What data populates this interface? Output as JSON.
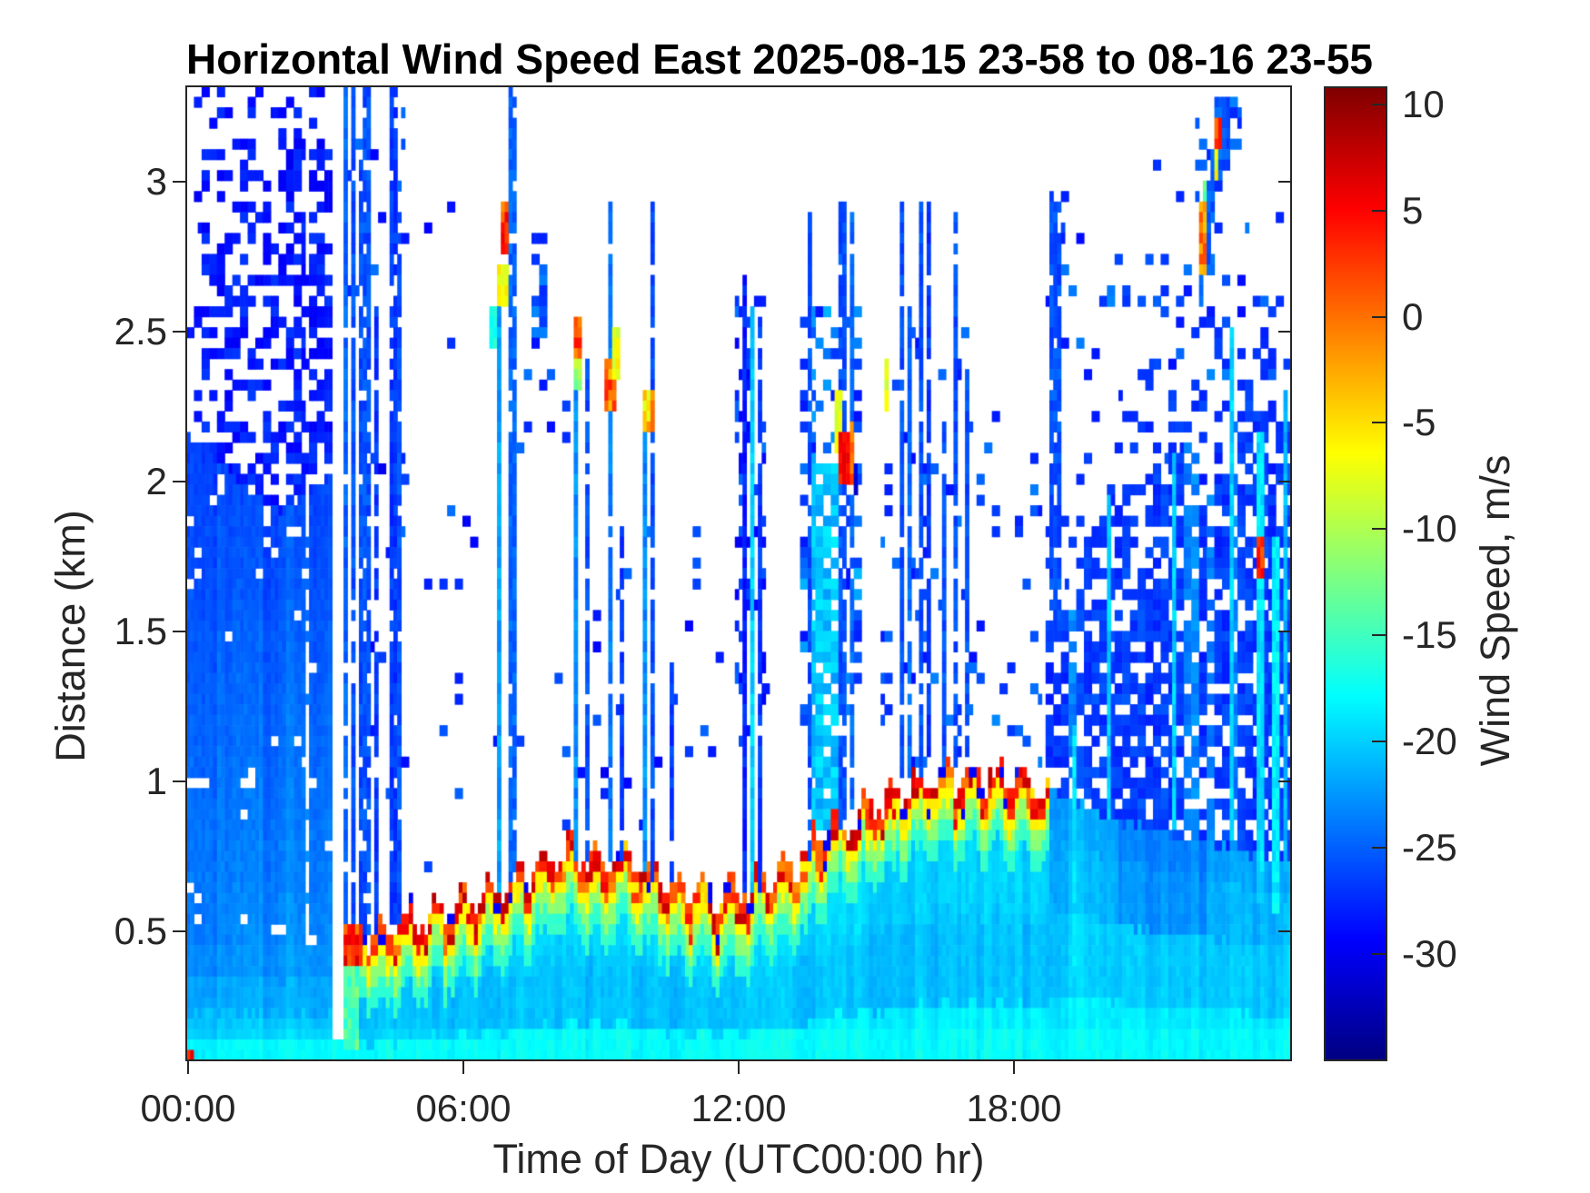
{
  "chart_data": {
    "type": "heatmap",
    "title": "Horizontal Wind Speed East 2025-08-15 23-58 to 08-16 23-55",
    "xlabel": "Time of Day (UTC00:00 hr)",
    "ylabel": "Distance (km)",
    "colorbar_label": "Wind Speed, m/s",
    "colormap": "jet",
    "x_unit": "hour UTC",
    "y_unit": "km",
    "x_range_hours": [
      0,
      24
    ],
    "y_range_km": [
      0.07,
      3.32
    ],
    "value_range": [
      -35,
      10.8
    ],
    "grid": false,
    "x_ticks": [
      {
        "hour": 0,
        "label": "00:00"
      },
      {
        "hour": 6,
        "label": "06:00"
      },
      {
        "hour": 12,
        "label": "12:00"
      },
      {
        "hour": 18,
        "label": "18:00"
      }
    ],
    "y_ticks": [
      {
        "km": 3,
        "label": "3"
      },
      {
        "km": 2.5,
        "label": "2.5"
      },
      {
        "km": 2,
        "label": "2"
      },
      {
        "km": 1.5,
        "label": "1.5"
      },
      {
        "km": 1,
        "label": "1"
      },
      {
        "km": 0.5,
        "label": "0.5"
      }
    ],
    "colorbar_ticks": [
      {
        "value": 10,
        "label": "10"
      },
      {
        "value": 5,
        "label": "5"
      },
      {
        "value": 0,
        "label": "0"
      },
      {
        "value": -5,
        "label": "-5"
      },
      {
        "value": -10,
        "label": "-10"
      },
      {
        "value": -15,
        "label": "-15"
      },
      {
        "value": -20,
        "label": "-20"
      },
      {
        "value": -25,
        "label": "-25"
      },
      {
        "value": -30,
        "label": "-30"
      }
    ],
    "mixed_layer_top_km": [
      [
        0,
        0.46
      ],
      [
        1,
        0.46
      ],
      [
        2,
        0.45
      ],
      [
        3,
        0.45
      ],
      [
        3.4,
        0.46
      ],
      [
        4,
        0.5
      ],
      [
        5,
        0.55
      ],
      [
        6,
        0.6
      ],
      [
        6.5,
        0.63
      ],
      [
        7,
        0.68
      ],
      [
        7.5,
        0.72
      ],
      [
        8,
        0.75
      ],
      [
        8.5,
        0.78
      ],
      [
        9,
        0.73
      ],
      [
        9.5,
        0.75
      ],
      [
        10,
        0.7
      ],
      [
        10.5,
        0.66
      ],
      [
        11,
        0.63
      ],
      [
        11.5,
        0.62
      ],
      [
        12,
        0.64
      ],
      [
        12.5,
        0.67
      ],
      [
        13,
        0.71
      ],
      [
        13.5,
        0.78
      ],
      [
        14,
        0.85
      ],
      [
        14.5,
        0.89
      ],
      [
        15,
        0.93
      ],
      [
        15.5,
        0.96
      ],
      [
        16,
        1.0
      ],
      [
        16.5,
        1.03
      ],
      [
        17,
        1.0
      ],
      [
        17.5,
        1.03
      ],
      [
        18,
        1.0
      ],
      [
        18.5,
        0.99
      ],
      [
        18.8,
        0.97
      ],
      [
        19.5,
        0.92
      ],
      [
        20,
        0.88
      ],
      [
        21,
        0.84
      ],
      [
        22,
        0.8
      ],
      [
        23,
        0.76
      ],
      [
        24,
        0.73
      ]
    ],
    "aerosol_band": {
      "start_hour": 3.42,
      "end_hour": 18.8,
      "typical_values": [
        0,
        9
      ]
    },
    "early_solid_top_km": [
      [
        0,
        2.15
      ],
      [
        0.5,
        2.1
      ],
      [
        1,
        2.02
      ],
      [
        1.5,
        1.95
      ],
      [
        2,
        1.9
      ],
      [
        2.5,
        1.95
      ],
      [
        3,
        2.0
      ],
      [
        3.35,
        2.05
      ]
    ],
    "evening_dense_top_km": [
      [
        18.65,
        1.5
      ],
      [
        19.5,
        1.8
      ],
      [
        20,
        1.9
      ],
      [
        21,
        2.05
      ],
      [
        22,
        2.15
      ],
      [
        23,
        2.35
      ],
      [
        24,
        2.2
      ]
    ],
    "white_gap_hours": [
      [
        3.17,
        3.4
      ]
    ],
    "speckle_regions": [
      {
        "t0": 3.35,
        "t1": 4.75,
        "h0": 0.6,
        "h1": 3.3,
        "p": 0.045,
        "v": -27,
        "vr": 3
      },
      {
        "t0": 4.75,
        "t1": 6.7,
        "h0": 0.7,
        "h1": 2.3,
        "p": 0.025,
        "v": -27,
        "vr": 3
      },
      {
        "t0": 4.75,
        "t1": 6.7,
        "h0": 2.3,
        "h1": 3.3,
        "p": 0.012,
        "v": -27,
        "vr": 3
      },
      {
        "t0": 7.15,
        "t1": 8.4,
        "h0": 0.8,
        "h1": 2.4,
        "p": 0.04,
        "v": -27,
        "vr": 3
      },
      {
        "t0": 7.5,
        "t1": 7.8,
        "h0": 2.45,
        "h1": 2.85,
        "p": 0.5,
        "v": -26,
        "vr": 3
      },
      {
        "t0": 8.4,
        "t1": 13.3,
        "h0": 0.85,
        "h1": 1.9,
        "p": 0.035,
        "v": -27,
        "vr": 3
      },
      {
        "t0": 11.95,
        "t1": 12.55,
        "h0": 1.2,
        "h1": 2.7,
        "p": 0.3,
        "v": -27,
        "vr": 3
      },
      {
        "t0": 13.3,
        "t1": 14.7,
        "h0": 1.2,
        "h1": 2.6,
        "p": 0.3,
        "v": -25,
        "vr": 4
      },
      {
        "t0": 13.55,
        "t1": 14.15,
        "h0": 0.85,
        "h1": 2.05,
        "p": 0.85,
        "v": -20.5,
        "vr": 2
      },
      {
        "t0": 15.1,
        "t1": 17.1,
        "h0": 1.05,
        "h1": 2.5,
        "p": 0.1,
        "v": -26,
        "vr": 3
      },
      {
        "t0": 17.1,
        "t1": 18.6,
        "h0": 0.95,
        "h1": 2.25,
        "p": 0.07,
        "v": -26,
        "vr": 3
      },
      {
        "t0": 18.7,
        "t1": 24,
        "h0": 2.35,
        "h1": 2.75,
        "p": 0.1,
        "v": -26,
        "vr": 3
      },
      {
        "t0": 18.75,
        "t1": 19.1,
        "h0": 2.8,
        "h1": 2.98,
        "p": 0.35,
        "v": -26,
        "vr": 3
      },
      {
        "t0": 21.9,
        "t1": 23.1,
        "h0": 2.35,
        "h1": 3.25,
        "p": 0.07,
        "v": -26,
        "vr": 3
      },
      {
        "t0": 22.5,
        "t1": 22.95,
        "h0": 3.05,
        "h1": 3.28,
        "p": 0.5,
        "v": -26,
        "vr": 3
      }
    ],
    "streak_columns": [
      {
        "t": 3.42,
        "h0": 0.5,
        "h1": 3.32,
        "w": 0.14,
        "v": -25,
        "g": 1
      },
      {
        "t": 3.58,
        "h0": 0.5,
        "h1": 3.32,
        "w": 0.1,
        "v": -26,
        "g": 1
      },
      {
        "t": 3.74,
        "h0": 0.5,
        "h1": 3.1,
        "w": 0.1,
        "v": -26,
        "g": 1
      },
      {
        "t": 3.9,
        "h0": 0.5,
        "h1": 3.32,
        "w": 0.12,
        "v": -26,
        "g": 1
      },
      {
        "t": 4.07,
        "h0": 0.5,
        "h1": 2.6,
        "w": 0.08,
        "v": -27,
        "g": 1
      },
      {
        "t": 4.47,
        "h0": 0.52,
        "h1": 3.32,
        "w": 0.1,
        "v": -27,
        "g": 1
      },
      {
        "t": 4.63,
        "h0": 0.52,
        "h1": 2.9,
        "w": 0.08,
        "v": -26,
        "g": 1
      },
      {
        "t": 6.78,
        "h0": 0.62,
        "h1": 2.6,
        "w": 0.1,
        "v": -22,
        "g": 0
      },
      {
        "t": 7.08,
        "h0": 0.65,
        "h1": 3.32,
        "w": 0.12,
        "v": -25,
        "g": 1
      },
      {
        "t": 8.47,
        "h0": 0.72,
        "h1": 2.45,
        "w": 0.1,
        "v": -23,
        "g": 0
      },
      {
        "t": 8.72,
        "h0": 0.74,
        "h1": 2.4,
        "w": 0.07,
        "v": -26,
        "g": 1
      },
      {
        "t": 9.2,
        "h0": 0.75,
        "h1": 2.95,
        "w": 0.13,
        "v": -24,
        "g": 1
      },
      {
        "t": 9.48,
        "h0": 0.73,
        "h1": 1.85,
        "w": 0.07,
        "v": -27,
        "g": 1
      },
      {
        "t": 9.98,
        "h0": 0.7,
        "h1": 2.2,
        "w": 0.08,
        "v": -23,
        "g": 0
      },
      {
        "t": 10.15,
        "h0": 0.68,
        "h1": 2.95,
        "w": 0.08,
        "v": -26,
        "g": 1
      },
      {
        "t": 10.55,
        "h0": 0.65,
        "h1": 1.4,
        "w": 0.07,
        "v": -27,
        "g": 1
      },
      {
        "t": 12.1,
        "h0": 0.64,
        "h1": 2.7,
        "w": 0.09,
        "v": -28,
        "g": 0
      },
      {
        "t": 12.3,
        "h0": 0.64,
        "h1": 2.6,
        "w": 0.07,
        "v": -20,
        "g": 0
      },
      {
        "t": 12.42,
        "h0": 0.64,
        "h1": 2.55,
        "w": 0.07,
        "v": -27,
        "g": 1
      },
      {
        "t": 13.55,
        "h0": 0.75,
        "h1": 2.9,
        "w": 0.08,
        "v": -26,
        "g": 1
      },
      {
        "t": 14.25,
        "h0": 0.85,
        "h1": 2.95,
        "w": 0.09,
        "v": -26,
        "g": 1
      },
      {
        "t": 14.48,
        "h0": 0.9,
        "h1": 2.95,
        "w": 0.07,
        "v": -25,
        "g": 1
      },
      {
        "t": 15.52,
        "h0": 1.0,
        "h1": 2.95,
        "w": 0.1,
        "v": -26,
        "g": 1
      },
      {
        "t": 15.7,
        "h0": 1.0,
        "h1": 2.6,
        "w": 0.07,
        "v": -25,
        "g": 1
      },
      {
        "t": 15.95,
        "h0": 1.02,
        "h1": 2.95,
        "w": 0.11,
        "v": -26,
        "g": 1
      },
      {
        "t": 16.17,
        "h0": 1.05,
        "h1": 2.95,
        "w": 0.07,
        "v": -27,
        "g": 1
      },
      {
        "t": 16.45,
        "h0": 1.05,
        "h1": 2.2,
        "w": 0.07,
        "v": -26,
        "g": 1
      },
      {
        "t": 16.75,
        "h0": 1.05,
        "h1": 2.9,
        "w": 0.09,
        "v": -26,
        "g": 1
      },
      {
        "t": 17.0,
        "h0": 1.05,
        "h1": 2.4,
        "w": 0.06,
        "v": -26,
        "g": 1
      },
      {
        "t": 18.85,
        "h0": 1.5,
        "h1": 2.95,
        "w": 0.07,
        "v": -26,
        "g": 1
      },
      {
        "t": 19.0,
        "h0": 1.5,
        "h1": 2.95,
        "w": 0.06,
        "v": -26,
        "g": 1
      },
      {
        "t": 19.3,
        "h0": 0.3,
        "h1": 1.2,
        "w": 0.08,
        "v": -19,
        "g": 0
      },
      {
        "t": 20.05,
        "h0": 0.88,
        "h1": 1.95,
        "w": 0.08,
        "v": -20,
        "g": 0
      },
      {
        "t": 21.45,
        "h0": 0.85,
        "h1": 2.1,
        "w": 0.07,
        "v": -20,
        "g": 0
      },
      {
        "t": 22.7,
        "h0": 0.8,
        "h1": 2.5,
        "w": 0.08,
        "v": -19.5,
        "g": 0
      },
      {
        "t": 23.35,
        "h0": 0.6,
        "h1": 2.15,
        "w": 0.12,
        "v": -19,
        "g": 0
      },
      {
        "t": 23.72,
        "h0": 0.55,
        "h1": 1.8,
        "w": 0.14,
        "v": -18.5,
        "g": 0
      },
      {
        "t": 23.92,
        "h0": 0.6,
        "h1": 2.3,
        "w": 0.08,
        "v": -21,
        "g": 0
      },
      {
        "t": 22.08,
        "h0": 2.6,
        "h1": 2.88,
        "w": 0.1,
        "v": -25,
        "g": 0
      },
      {
        "t": 22.2,
        "h0": 2.7,
        "h1": 3.02,
        "w": 0.1,
        "v": -25,
        "g": 0
      },
      {
        "t": 22.32,
        "h0": 2.85,
        "h1": 3.12,
        "w": 0.1,
        "v": -25,
        "g": 0
      },
      {
        "t": 22.45,
        "h0": 3.0,
        "h1": 3.3,
        "w": 0.12,
        "v": -25,
        "g": 0
      },
      {
        "t": 22.6,
        "h0": 3.12,
        "h1": 3.3,
        "w": 0.12,
        "v": -26,
        "g": 0
      }
    ],
    "features": [
      {
        "t0": 0,
        "t1": 0.1,
        "h0": 0.07,
        "h1": 0.1,
        "v": 4,
        "vr": 3
      },
      {
        "t0": 3.42,
        "t1": 3.72,
        "h0": 0.1,
        "h1": 0.48,
        "v": -14,
        "vr": 2.5
      },
      {
        "t0": 3.42,
        "t1": 3.76,
        "h0": 0.4,
        "h1": 0.52,
        "v": 3,
        "vr": 4
      },
      {
        "t0": 6.6,
        "t1": 6.72,
        "h0": 2.45,
        "h1": 2.6,
        "v": -15,
        "vr": 3
      },
      {
        "t0": 6.8,
        "t1": 6.94,
        "h0": 2.6,
        "h1": 2.74,
        "v": -7,
        "vr": 2
      },
      {
        "t0": 6.82,
        "t1": 6.96,
        "h0": 2.76,
        "h1": 2.92,
        "v": 2,
        "vr": 4
      },
      {
        "t0": 8.42,
        "t1": 8.52,
        "h0": 2.3,
        "h1": 2.42,
        "v": -11,
        "vr": 3
      },
      {
        "t0": 8.42,
        "t1": 8.56,
        "h0": 2.42,
        "h1": 2.56,
        "v": 1,
        "vr": 4
      },
      {
        "t0": 9.12,
        "t1": 9.3,
        "h0": 2.22,
        "h1": 2.4,
        "v": 0,
        "vr": 4
      },
      {
        "t0": 9.3,
        "t1": 9.4,
        "h0": 2.35,
        "h1": 2.5,
        "v": -7,
        "vr": 2
      },
      {
        "t0": 9.95,
        "t1": 10.12,
        "h0": 2.15,
        "h1": 2.32,
        "v": -4,
        "vr": 5
      },
      {
        "t0": 14.12,
        "t1": 14.2,
        "h0": 2.08,
        "h1": 2.3,
        "v": -7,
        "vr": 2
      },
      {
        "t0": 14.18,
        "t1": 14.42,
        "h0": 1.98,
        "h1": 2.17,
        "v": 6,
        "vr": 3
      },
      {
        "t0": 14.42,
        "t1": 14.5,
        "h0": 2.0,
        "h1": 2.2,
        "v": 1,
        "vr": 3
      },
      {
        "t0": 14.5,
        "t1": 14.56,
        "h0": 1.95,
        "h1": 2.06,
        "v": -31,
        "vr": 1
      },
      {
        "t0": 15.18,
        "t1": 15.25,
        "h0": 2.25,
        "h1": 2.42,
        "v": -7,
        "vr": 2
      },
      {
        "t0": 22.05,
        "t1": 22.18,
        "h0": 2.7,
        "h1": 2.92,
        "v": -1,
        "vr": 3
      },
      {
        "t0": 22.12,
        "t1": 22.2,
        "h0": 2.92,
        "h1": 3.0,
        "v": -13,
        "vr": 2
      },
      {
        "t0": 22.35,
        "t1": 22.45,
        "h0": 3.02,
        "h1": 3.12,
        "v": -7,
        "vr": 2
      },
      {
        "t0": 22.4,
        "t1": 22.52,
        "h0": 3.12,
        "h1": 3.22,
        "v": 1,
        "vr": 4
      },
      {
        "t0": 23.28,
        "t1": 23.45,
        "h0": 1.68,
        "h1": 1.83,
        "v": 2,
        "vr": 4
      }
    ]
  },
  "colors": {
    "background": "#ffffff",
    "title_text": "#000000",
    "axis_text": "#262626",
    "axis_line": "#262626"
  }
}
